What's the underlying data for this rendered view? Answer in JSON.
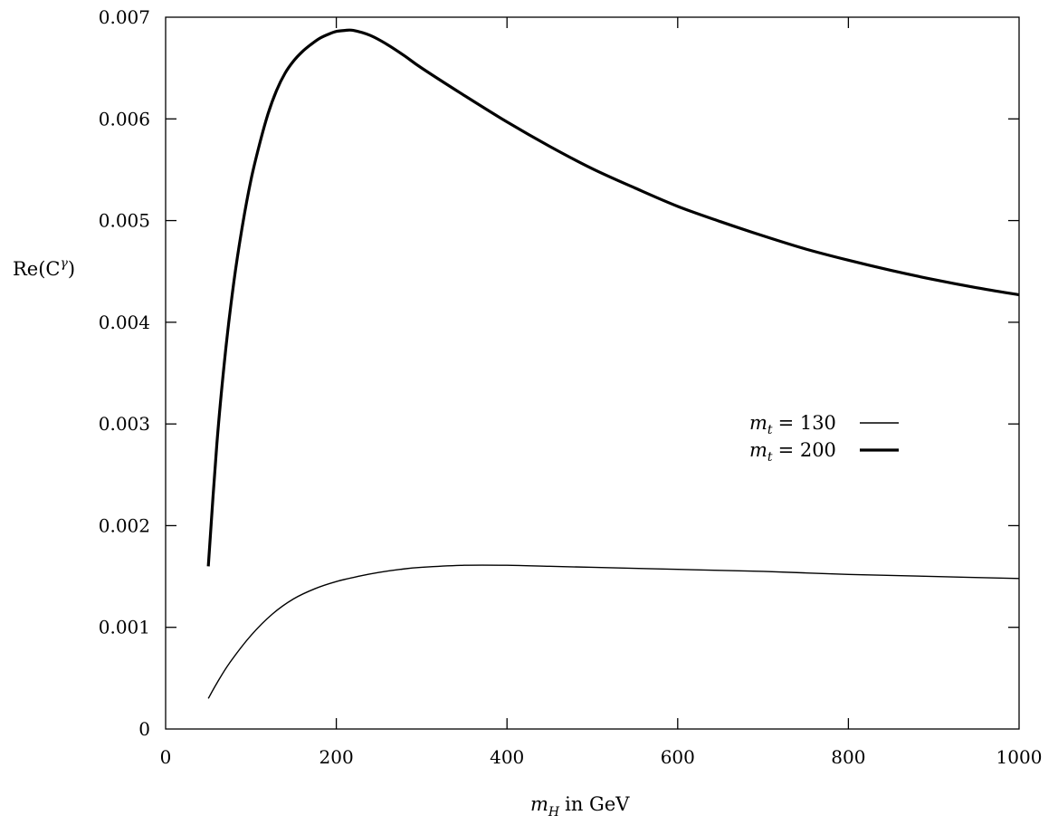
{
  "chart_data": {
    "type": "line",
    "title": "",
    "xlabel": "m_H in GeV",
    "xlabel_parts": {
      "sym": "m",
      "sub": "H",
      "rest": "in GeV"
    },
    "ylabel": "Re(C^γ)",
    "ylabel_parts": {
      "pre": "Re(C",
      "sup": "γ",
      "post": ")"
    },
    "xlim": [
      0,
      1000
    ],
    "ylim": [
      0,
      0.007
    ],
    "xticks": [
      0,
      200,
      400,
      600,
      800,
      1000
    ],
    "yticks": [
      0,
      0.001,
      0.002,
      0.003,
      0.004,
      0.005,
      0.006,
      0.007
    ],
    "xtick_labels": [
      "0",
      "200",
      "400",
      "600",
      "800",
      "1000"
    ],
    "ytick_labels": [
      "0",
      "0.001",
      "0.002",
      "0.003",
      "0.004",
      "0.005",
      "0.006",
      "0.007"
    ],
    "grid": false,
    "legend_position": "right",
    "series": [
      {
        "name": "m_t = 130",
        "legend_parts": {
          "sym": "m",
          "sub": "t",
          "rest": "= 130"
        },
        "style": "thin",
        "x": [
          50,
          60,
          75,
          100,
          125,
          150,
          175,
          200,
          225,
          250,
          275,
          300,
          350,
          400,
          450,
          500,
          600,
          700,
          800,
          900,
          1000
        ],
        "y": [
          0.0003,
          0.00045,
          0.00065,
          0.00092,
          0.00113,
          0.00128,
          0.00138,
          0.00145,
          0.0015,
          0.00154,
          0.00157,
          0.00159,
          0.00161,
          0.00161,
          0.0016,
          0.00159,
          0.00157,
          0.00155,
          0.00152,
          0.0015,
          0.00148
        ]
      },
      {
        "name": "m_t = 200",
        "legend_parts": {
          "sym": "m",
          "sub": "t",
          "rest": "= 200"
        },
        "style": "thick",
        "x": [
          50,
          60,
          70,
          80,
          90,
          100,
          110,
          120,
          130,
          140,
          150,
          160,
          170,
          180,
          190,
          200,
          210,
          220,
          240,
          260,
          280,
          300,
          350,
          400,
          450,
          500,
          550,
          600,
          650,
          700,
          750,
          800,
          850,
          900,
          950,
          1000
        ],
        "y": [
          0.0016,
          0.0028,
          0.0037,
          0.0044,
          0.00495,
          0.0054,
          0.00575,
          0.00605,
          0.00628,
          0.00645,
          0.00657,
          0.00666,
          0.00673,
          0.00679,
          0.00683,
          0.00686,
          0.00687,
          0.00687,
          0.00682,
          0.00673,
          0.00662,
          0.0065,
          0.00623,
          0.00597,
          0.00573,
          0.00551,
          0.00532,
          0.00514,
          0.00499,
          0.00485,
          0.00472,
          0.00461,
          0.00451,
          0.00442,
          0.00434,
          0.00427
        ]
      }
    ]
  }
}
